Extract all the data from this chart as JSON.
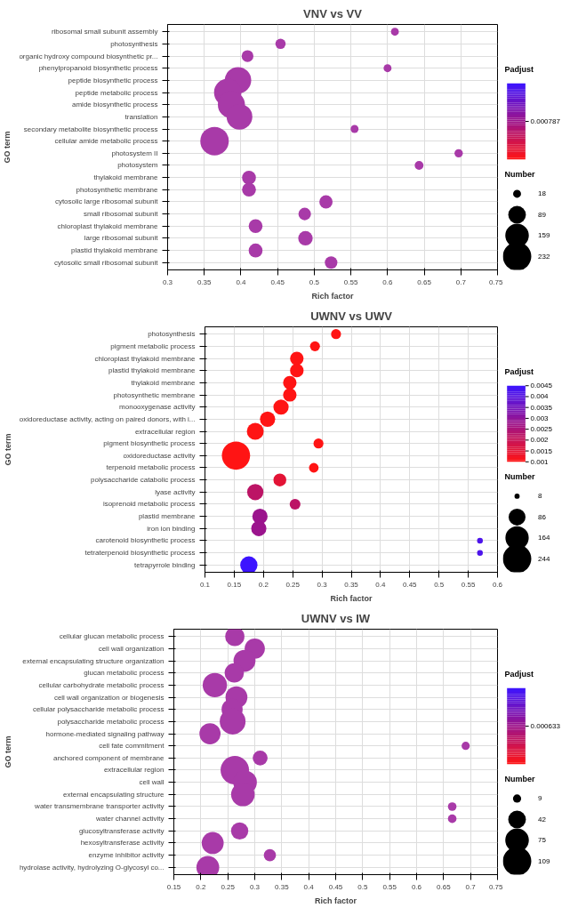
{
  "chart_data": [
    {
      "type": "bubble",
      "orientation": "horizontal",
      "title": "VNV vs VV",
      "xlabel": "Rich factor",
      "ylabel": "GO term",
      "clabel": "Padjust",
      "legend_title": "Number",
      "grid": true,
      "categories": [
        "ribosomal small subunit assembly",
        "photosynthesis",
        "organic hydroxy compound biosynthetic pr...",
        "phenylpropanoid biosynthetic process",
        "peptide biosynthetic process",
        "peptide metabolic process",
        "amide biosynthetic process",
        "translation",
        "secondary metabolite biosynthetic process",
        "cellular amide metabolic process",
        "photosystem II",
        "photosystem",
        "thylakoid membrane",
        "photosynthetic membrane",
        "cytosolic large ribosomal subunit",
        "small ribosomal subunit",
        "chloroplast thylakoid membrane",
        "large ribosomal subunit",
        "plastid thylakoid membrane",
        "cytosolic small ribosomal subunit"
      ],
      "values": [
        0.61,
        0.454,
        0.409,
        0.6,
        0.396,
        0.382,
        0.387,
        0.398,
        0.555,
        0.364,
        0.697,
        0.643,
        0.411,
        0.411,
        0.516,
        0.487,
        0.42,
        0.488,
        0.42,
        0.523
      ],
      "sizes": [
        18,
        30,
        40,
        18,
        200,
        215,
        210,
        190,
        18,
        232,
        20,
        22,
        55,
        55,
        50,
        45,
        55,
        60,
        55,
        45
      ],
      "size_legend": [
        18,
        89,
        159,
        232
      ],
      "colors": [
        "#a83aa8",
        "#a83aa8",
        "#a83aa8",
        "#a83aa8",
        "#a83aa8",
        "#a83aa8",
        "#a83aa8",
        "#a83aa8",
        "#a83aa8",
        "#a83aa8",
        "#a83aa8",
        "#a83aa8",
        "#a83aa8",
        "#a83aa8",
        "#a83aa8",
        "#a83aa8",
        "#a83aa8",
        "#a83aa8",
        "#a83aa8",
        "#a83aa8"
      ],
      "annotations": [
        "0.000787"
      ],
      "xlim": [
        0.3,
        0.75
      ],
      "xticks": [
        0.3,
        0.35,
        0.4,
        0.45,
        0.5,
        0.55,
        0.6,
        0.65,
        0.7,
        0.75
      ]
    },
    {
      "type": "bubble",
      "orientation": "horizontal",
      "title": "UWNV vs UWV",
      "xlabel": "Rich factor",
      "ylabel": "GO term",
      "clabel": "Padjust",
      "legend_title": "Number",
      "grid": true,
      "categories": [
        "photosynthesis",
        "pigment metabolic process",
        "chloroplast thylakoid membrane",
        "plastid thylakoid membrane",
        "thylakoid membrane",
        "photosynthetic membrane",
        "monooxygenase activity",
        "oxidoreductase activity, acting on paired donors, with i...",
        "extracellular region",
        "pigment biosynthetic process",
        "oxidoreductase activity",
        "terpenoid metabolic process",
        "polysaccharide catabolic process",
        "lyase activity",
        "isoprenoid metabolic process",
        "plastid membrane",
        "iron ion binding",
        "carotenoid biosynthetic process",
        "tetraterpenoid biosynthetic process",
        "tetrapyrrole binding"
      ],
      "values": [
        0.324,
        0.288,
        0.257,
        0.257,
        0.245,
        0.245,
        0.23,
        0.207,
        0.186,
        0.294,
        0.153,
        0.286,
        0.228,
        0.186,
        0.254,
        0.194,
        0.192,
        0.57,
        0.57,
        0.175
      ],
      "sizes": [
        30,
        30,
        55,
        55,
        55,
        55,
        70,
        70,
        86,
        30,
        240,
        28,
        50,
        80,
        35,
        70,
        70,
        10,
        10,
        90
      ],
      "size_legend": [
        8,
        86,
        164,
        244
      ],
      "cvalues": [
        0.001,
        0.001,
        0.001,
        0.001,
        0.001,
        0.001,
        0.001,
        0.001,
        0.001,
        0.001,
        0.001,
        0.001,
        0.0015,
        0.0022,
        0.0022,
        0.0028,
        0.0028,
        0.0042,
        0.0042,
        0.0045
      ],
      "clim": [
        0.001,
        0.0045
      ],
      "cticks": [
        0.001,
        0.0015,
        0.002,
        0.0025,
        0.003,
        0.0035,
        0.004,
        0.0045
      ],
      "xlim": [
        0.1,
        0.6
      ],
      "xticks": [
        0.1,
        0.15,
        0.2,
        0.25,
        0.3,
        0.35,
        0.4,
        0.45,
        0.5,
        0.55,
        0.6
      ]
    },
    {
      "type": "bubble",
      "orientation": "horizontal",
      "title": "UWNV vs IW",
      "xlabel": "Rich factor",
      "ylabel": "GO term",
      "clabel": "Padjust",
      "legend_title": "Number",
      "grid": true,
      "categories": [
        "cellular glucan metabolic process",
        "cell wall organization",
        "external encapsulating structure organization",
        "glucan metabolic process",
        "cellular carbohydrate metabolic process",
        "cell wall organization or biogenesis",
        "cellular polysaccharide metabolic process",
        "polysaccharide metabolic process",
        "hormone-mediated signaling pathway",
        "cell fate commitment",
        "anchored component of membrane",
        "extracellular region",
        "cell wall",
        "external encapsulating structure",
        "water transmembrane transporter activity",
        "water channel activity",
        "glucosyltransferase activity",
        "hexosyltransferase activity",
        "enzyme inhibitor activity",
        "hydrolase activity, hydrolyzing O-glycosyl co..."
      ],
      "values": [
        0.263,
        0.3,
        0.281,
        0.262,
        0.226,
        0.266,
        0.258,
        0.259,
        0.217,
        0.691,
        0.31,
        0.263,
        0.282,
        0.278,
        0.666,
        0.666,
        0.272,
        0.222,
        0.328,
        0.213
      ],
      "sizes": [
        50,
        55,
        65,
        50,
        80,
        65,
        60,
        90,
        60,
        9,
        30,
        109,
        75,
        75,
        10,
        10,
        40,
        65,
        20,
        70
      ],
      "size_legend": [
        9,
        42,
        75,
        109
      ],
      "colors": [
        "#a83aa8",
        "#a83aa8",
        "#a83aa8",
        "#a83aa8",
        "#a83aa8",
        "#a83aa8",
        "#a83aa8",
        "#a83aa8",
        "#a83aa8",
        "#a83aa8",
        "#a83aa8",
        "#a83aa8",
        "#a83aa8",
        "#a83aa8",
        "#a83aa8",
        "#a83aa8",
        "#a83aa8",
        "#a83aa8",
        "#a83aa8",
        "#a83aa8"
      ],
      "annotations": [
        "0.000633"
      ],
      "xlim": [
        0.15,
        0.75
      ],
      "xticks": [
        0.15,
        0.2,
        0.25,
        0.3,
        0.35,
        0.4,
        0.45,
        0.5,
        0.55,
        0.6,
        0.65,
        0.7,
        0.75
      ]
    }
  ]
}
